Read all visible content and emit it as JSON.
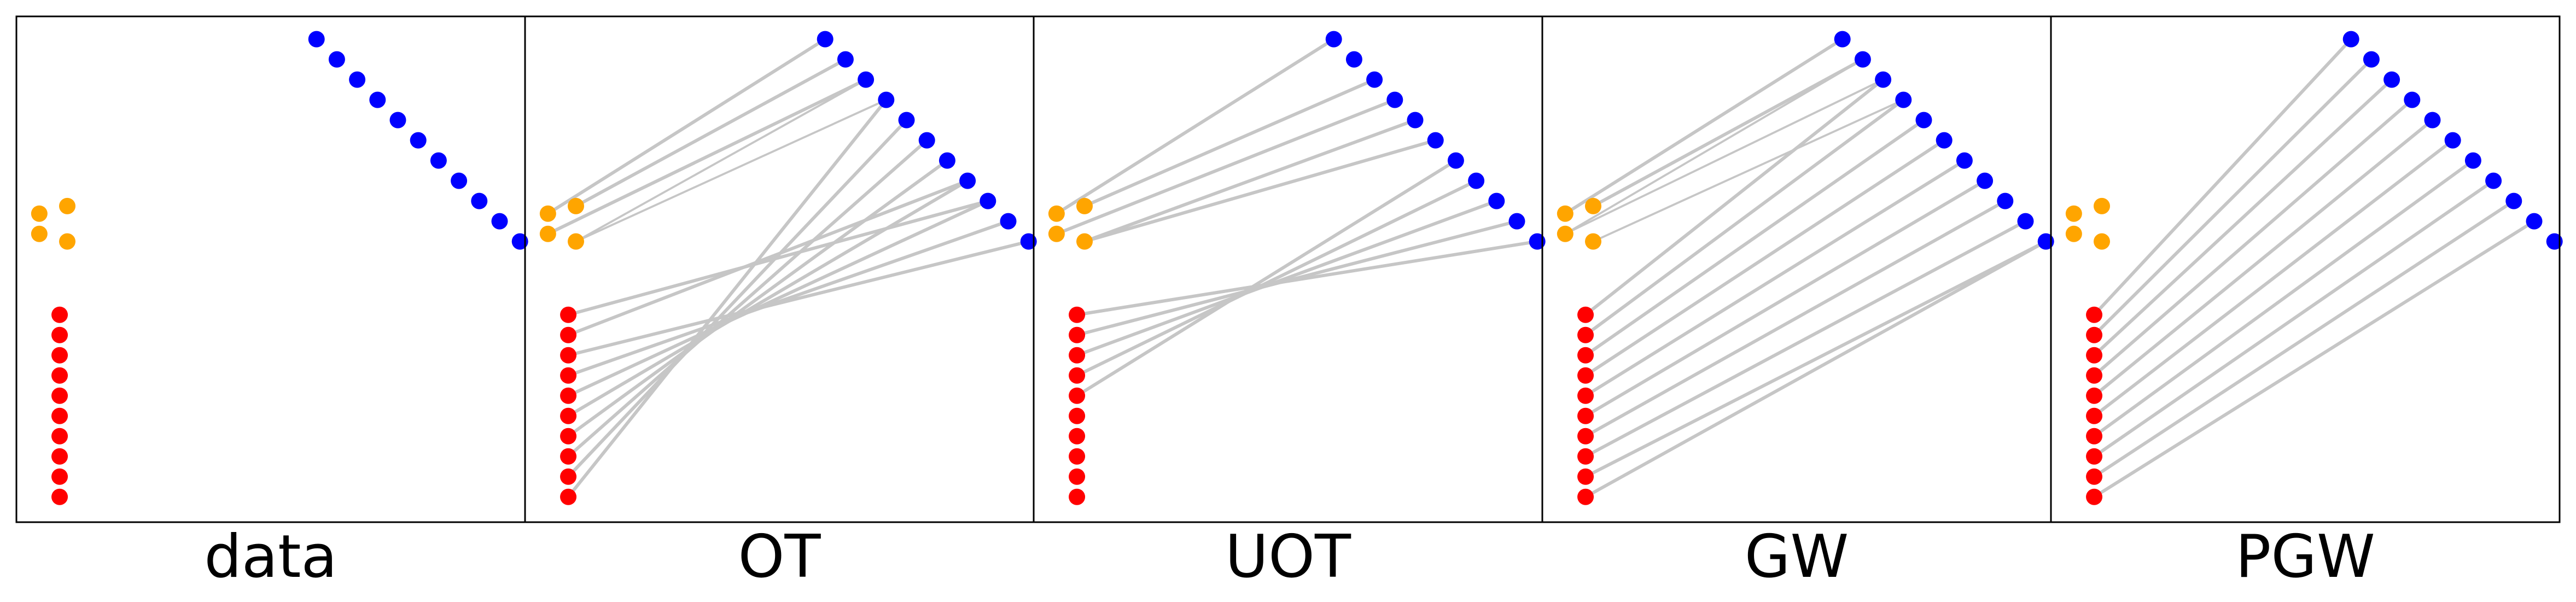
{
  "chart_data": {
    "type": "scatter",
    "description_of_units": "shared coordinate frame for every panel: x in [0, 1], y in [0, 1]",
    "xlim": [
      0,
      1
    ],
    "ylim": [
      0,
      1
    ],
    "grid": false,
    "axes_ticks": false,
    "colors": {
      "target": "#0000ff",
      "outlier": "#ffa500",
      "source": "#ff0000",
      "matching": "#c6c6c6"
    },
    "point_sets": {
      "target": [
        [
          0.59,
          0.955
        ],
        [
          0.63,
          0.915
        ],
        [
          0.67,
          0.875
        ],
        [
          0.71,
          0.835
        ],
        [
          0.75,
          0.795
        ],
        [
          0.79,
          0.755
        ],
        [
          0.83,
          0.715
        ],
        [
          0.87,
          0.675
        ],
        [
          0.91,
          0.635
        ],
        [
          0.95,
          0.595
        ],
        [
          0.99,
          0.555
        ]
      ],
      "outlier": [
        [
          0.045,
          0.61
        ],
        [
          0.1,
          0.625
        ],
        [
          0.045,
          0.57
        ],
        [
          0.1,
          0.555
        ]
      ],
      "source": [
        [
          0.085,
          0.41
        ],
        [
          0.085,
          0.37
        ],
        [
          0.085,
          0.33
        ],
        [
          0.085,
          0.29
        ],
        [
          0.085,
          0.25
        ],
        [
          0.085,
          0.21
        ],
        [
          0.085,
          0.17
        ],
        [
          0.085,
          0.13
        ],
        [
          0.085,
          0.09
        ],
        [
          0.085,
          0.05
        ]
      ]
    },
    "panels": [
      {
        "label": "data",
        "couplings": []
      },
      {
        "label": "OT",
        "couplings": [
          {
            "from": [
              "source",
              0
            ],
            "to": [
              "target",
              8
            ],
            "weight": 1.0
          },
          {
            "from": [
              "source",
              1
            ],
            "to": [
              "target",
              7
            ],
            "weight": 1.0
          },
          {
            "from": [
              "source",
              2
            ],
            "to": [
              "target",
              10
            ],
            "weight": 1.0
          },
          {
            "from": [
              "source",
              3
            ],
            "to": [
              "target",
              9
            ],
            "weight": 1.0
          },
          {
            "from": [
              "source",
              4
            ],
            "to": [
              "target",
              8
            ],
            "weight": 1.0
          },
          {
            "from": [
              "source",
              5
            ],
            "to": [
              "target",
              7
            ],
            "weight": 1.0
          },
          {
            "from": [
              "source",
              6
            ],
            "to": [
              "target",
              6
            ],
            "weight": 1.0
          },
          {
            "from": [
              "source",
              7
            ],
            "to": [
              "target",
              5
            ],
            "weight": 1.0
          },
          {
            "from": [
              "source",
              8
            ],
            "to": [
              "target",
              4
            ],
            "weight": 1.0
          },
          {
            "from": [
              "source",
              9
            ],
            "to": [
              "target",
              3
            ],
            "weight": 1.0
          },
          {
            "from": [
              "outlier",
              0
            ],
            "to": [
              "target",
              0
            ],
            "weight": 1.0
          },
          {
            "from": [
              "outlier",
              1
            ],
            "to": [
              "target",
              1
            ],
            "weight": 1.0
          },
          {
            "from": [
              "outlier",
              2
            ],
            "to": [
              "target",
              2
            ],
            "weight": 1.0
          },
          {
            "from": [
              "outlier",
              3
            ],
            "to": [
              "target",
              2
            ],
            "weight": 0.5
          },
          {
            "from": [
              "outlier",
              3
            ],
            "to": [
              "target",
              3
            ],
            "weight": 0.5
          }
        ]
      },
      {
        "label": "UOT",
        "couplings": [
          {
            "from": [
              "source",
              0
            ],
            "to": [
              "target",
              10
            ],
            "weight": 1.0
          },
          {
            "from": [
              "source",
              1
            ],
            "to": [
              "target",
              9
            ],
            "weight": 1.0
          },
          {
            "from": [
              "source",
              2
            ],
            "to": [
              "target",
              8
            ],
            "weight": 1.0
          },
          {
            "from": [
              "source",
              3
            ],
            "to": [
              "target",
              7
            ],
            "weight": 1.0
          },
          {
            "from": [
              "source",
              4
            ],
            "to": [
              "target",
              6
            ],
            "weight": 1.0
          },
          {
            "from": [
              "outlier",
              0
            ],
            "to": [
              "target",
              0
            ],
            "weight": 1.0
          },
          {
            "from": [
              "outlier",
              1
            ],
            "to": [
              "target",
              2
            ],
            "weight": 1.0
          },
          {
            "from": [
              "outlier",
              2
            ],
            "to": [
              "target",
              3
            ],
            "weight": 1.0
          },
          {
            "from": [
              "outlier",
              3
            ],
            "to": [
              "target",
              4
            ],
            "weight": 1.0
          },
          {
            "from": [
              "outlier",
              3
            ],
            "to": [
              "target",
              5
            ],
            "weight": 1.0
          }
        ]
      },
      {
        "label": "GW",
        "couplings": [
          {
            "from": [
              "source",
              0
            ],
            "to": [
              "target",
              2
            ],
            "weight": 1.0
          },
          {
            "from": [
              "source",
              1
            ],
            "to": [
              "target",
              3
            ],
            "weight": 1.0
          },
          {
            "from": [
              "source",
              2
            ],
            "to": [
              "target",
              4
            ],
            "weight": 1.0
          },
          {
            "from": [
              "source",
              3
            ],
            "to": [
              "target",
              5
            ],
            "weight": 1.0
          },
          {
            "from": [
              "source",
              4
            ],
            "to": [
              "target",
              6
            ],
            "weight": 1.0
          },
          {
            "from": [
              "source",
              5
            ],
            "to": [
              "target",
              7
            ],
            "weight": 1.0
          },
          {
            "from": [
              "source",
              6
            ],
            "to": [
              "target",
              8
            ],
            "weight": 1.0
          },
          {
            "from": [
              "source",
              7
            ],
            "to": [
              "target",
              9
            ],
            "weight": 1.0
          },
          {
            "from": [
              "source",
              8
            ],
            "to": [
              "target",
              10
            ],
            "weight": 1.0
          },
          {
            "from": [
              "source",
              9
            ],
            "to": [
              "target",
              10
            ],
            "weight": 1.0
          },
          {
            "from": [
              "outlier",
              0
            ],
            "to": [
              "target",
              0
            ],
            "weight": 1.0
          },
          {
            "from": [
              "outlier",
              1
            ],
            "to": [
              "target",
              1
            ],
            "weight": 1.0
          },
          {
            "from": [
              "outlier",
              2
            ],
            "to": [
              "target",
              1
            ],
            "weight": 0.5
          },
          {
            "from": [
              "outlier",
              2
            ],
            "to": [
              "target",
              2
            ],
            "weight": 0.5
          },
          {
            "from": [
              "outlier",
              3
            ],
            "to": [
              "target",
              3
            ],
            "weight": 0.5
          }
        ]
      },
      {
        "label": "PGW",
        "couplings": [
          {
            "from": [
              "source",
              0
            ],
            "to": [
              "target",
              0
            ],
            "weight": 1.0
          },
          {
            "from": [
              "source",
              1
            ],
            "to": [
              "target",
              1
            ],
            "weight": 1.0
          },
          {
            "from": [
              "source",
              2
            ],
            "to": [
              "target",
              2
            ],
            "weight": 1.0
          },
          {
            "from": [
              "source",
              3
            ],
            "to": [
              "target",
              3
            ],
            "weight": 1.0
          },
          {
            "from": [
              "source",
              4
            ],
            "to": [
              "target",
              4
            ],
            "weight": 1.0
          },
          {
            "from": [
              "source",
              5
            ],
            "to": [
              "target",
              5
            ],
            "weight": 1.0
          },
          {
            "from": [
              "source",
              6
            ],
            "to": [
              "target",
              6
            ],
            "weight": 1.0
          },
          {
            "from": [
              "source",
              7
            ],
            "to": [
              "target",
              7
            ],
            "weight": 1.0
          },
          {
            "from": [
              "source",
              8
            ],
            "to": [
              "target",
              8
            ],
            "weight": 1.0
          },
          {
            "from": [
              "source",
              9
            ],
            "to": [
              "target",
              9
            ],
            "weight": 1.0
          }
        ]
      }
    ]
  }
}
